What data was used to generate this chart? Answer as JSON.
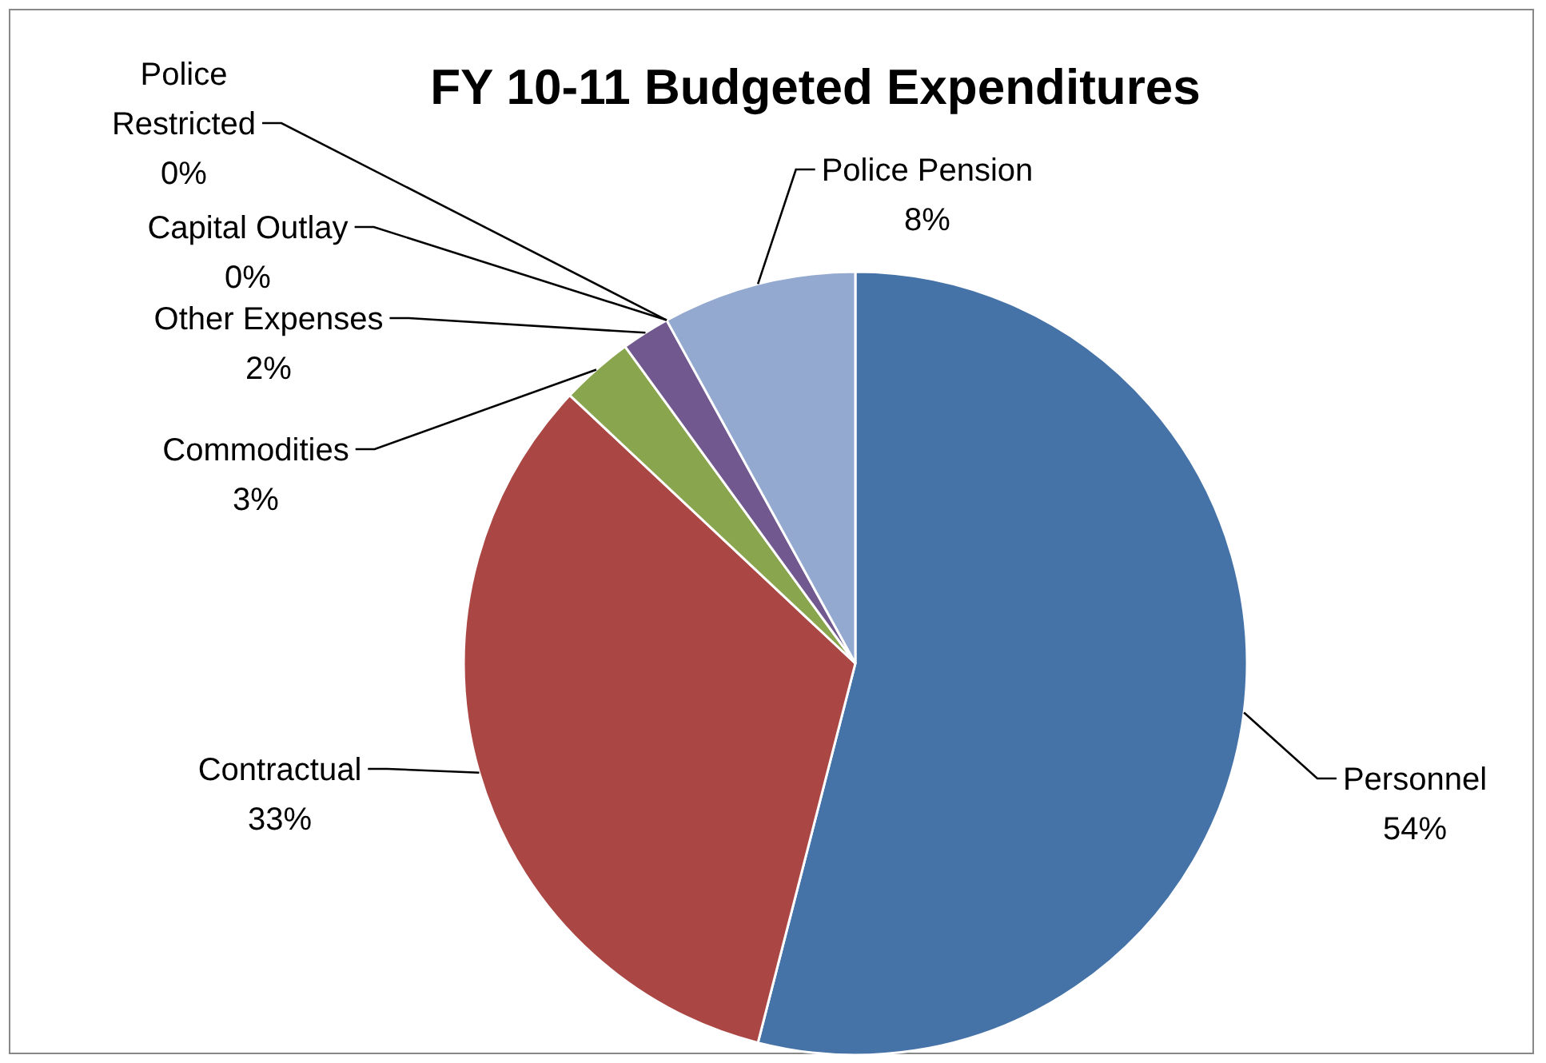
{
  "chart_data": {
    "type": "pie",
    "title": "FY 10-11 Budgeted Expenditures",
    "categories": [
      "Personnel",
      "Contractual",
      "Commodities",
      "Other Expenses",
      "Capital Outlay",
      "Police Restricted",
      "Police Pension"
    ],
    "values": [
      54,
      33,
      3,
      2,
      0,
      0,
      8
    ],
    "value_labels": [
      "54%",
      "33%",
      "3%",
      "2%",
      "0%",
      "0%",
      "8%"
    ],
    "colors": [
      "#4572a7",
      "#aa4643",
      "#89a54e",
      "#71588f",
      "#4198af",
      "#db843d",
      "#93a9d0"
    ]
  }
}
